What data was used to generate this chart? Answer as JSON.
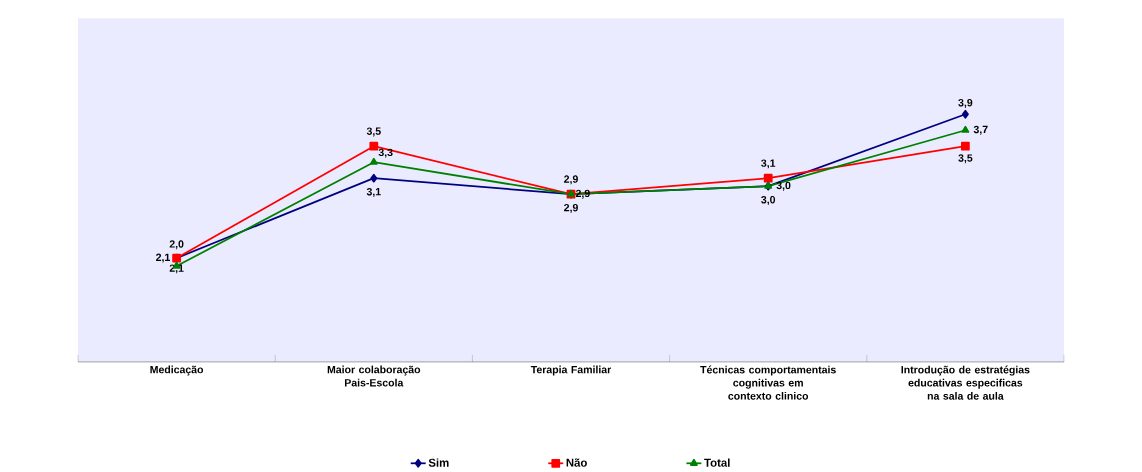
{
  "chart_data": {
    "type": "line",
    "categories": [
      "Medicação",
      "Maior colaboração Pais-Escola",
      "Terapia Familiar",
      "Técnicas comportamentais cognitivas em contexto clinico",
      "Introdução de estratégias educativas especificas na sala de aula"
    ],
    "series": [
      {
        "name": "Sim",
        "color": "#000080",
        "marker": "diamond",
        "values": [
          2.1,
          3.1,
          2.9,
          3.0,
          3.9
        ],
        "value_labels": [
          "2,1",
          "3,1",
          "2,9",
          "3,0",
          "3,9"
        ]
      },
      {
        "name": "Não",
        "color": "#ff0000",
        "marker": "square",
        "values": [
          2.1,
          3.5,
          2.9,
          3.1,
          3.5
        ],
        "value_labels": [
          "2,1",
          "3,5",
          "2,9",
          "3,1",
          "3,5"
        ]
      },
      {
        "name": "Total",
        "color": "#008000",
        "marker": "triangle",
        "values": [
          2.0,
          3.3,
          2.9,
          3.0,
          3.7
        ],
        "value_labels": [
          "2,0",
          "3,3",
          "2,9",
          "3,0",
          "3,7"
        ]
      }
    ],
    "ylim": [
      0.8,
      5.1
    ],
    "tick_labels": "x",
    "grid": false,
    "legend": "bottom",
    "line_style": "solid"
  }
}
